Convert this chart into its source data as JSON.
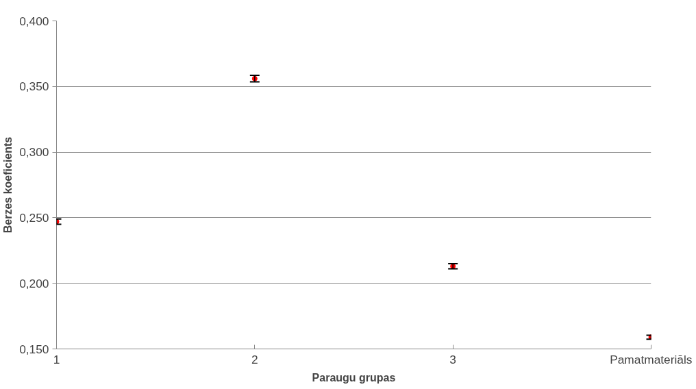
{
  "chart_data": {
    "type": "scatter",
    "xlabel": "Paraugu grupas",
    "ylabel": "Berzes koeficients",
    "categories": [
      "1",
      "2",
      "3",
      "Pamatmateriāls"
    ],
    "series": [
      {
        "color": "#ff0000",
        "values": [
          0.247,
          0.356,
          0.213,
          0.159
        ],
        "errors": [
          0.002,
          0.0025,
          0.002,
          0.0015
        ]
      }
    ],
    "ylim": [
      0.15,
      0.4
    ],
    "yticks": [
      {
        "value": 0.15,
        "label": "0,150"
      },
      {
        "value": 0.2,
        "label": "0,200"
      },
      {
        "value": 0.25,
        "label": "0,250"
      },
      {
        "value": 0.3,
        "label": "0,300"
      },
      {
        "value": 0.35,
        "label": "0,350"
      },
      {
        "value": 0.4,
        "label": "0,400"
      }
    ],
    "grid": "y",
    "marker": "circle"
  }
}
